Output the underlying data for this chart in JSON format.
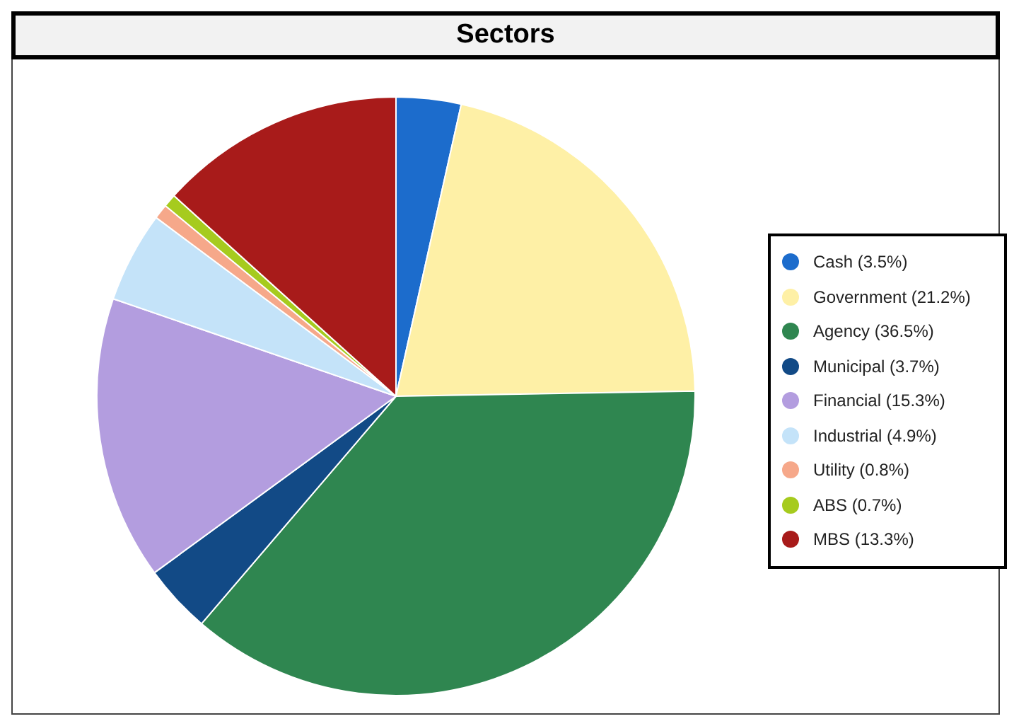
{
  "chart_data": {
    "type": "pie",
    "title": "Sectors",
    "categories": [
      "Cash (3.5%)",
      "Government (21.2%)",
      "Agency (36.5%)",
      "Municipal (3.7%)",
      "Financial (15.3%)",
      "Industrial (4.9%)",
      "Utility (0.8%)",
      "ABS (0.7%)",
      "MBS (13.3%)"
    ],
    "values": [
      3.5,
      21.2,
      36.5,
      3.7,
      15.3,
      4.9,
      0.8,
      0.7,
      13.3
    ],
    "colors": [
      "#1c6ccc",
      "#fef0a6",
      "#2f8650",
      "#124a86",
      "#b39ddf",
      "#c4e3f9",
      "#f6a88a",
      "#a6cb1e",
      "#a81b1a"
    ],
    "legend": "right"
  }
}
